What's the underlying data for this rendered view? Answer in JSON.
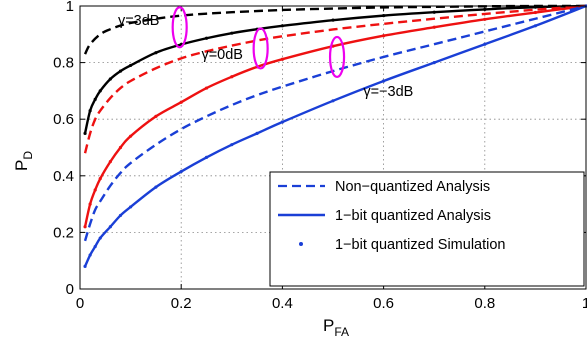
{
  "chart_data": {
    "type": "line",
    "xlabel_main": "P",
    "xlabel_sub": "FA",
    "ylabel_main": "P",
    "ylabel_sub": "D",
    "xlim": [
      0,
      1
    ],
    "ylim": [
      0,
      1
    ],
    "x_ticks": [
      0,
      0.2,
      0.4,
      0.6,
      0.8,
      1
    ],
    "y_ticks": [
      0,
      0.2,
      0.4,
      0.6,
      0.8,
      1
    ],
    "x_tick_labels": [
      "0",
      "0.2",
      "0.4",
      "0.6",
      "0.8",
      "1"
    ],
    "y_tick_labels": [
      "0",
      "0.2",
      "0.4",
      "0.6",
      "0.8",
      "1"
    ],
    "grid": true,
    "legend_position": "bottom-right",
    "legend": [
      {
        "label": "Non−quantized Analysis",
        "style": "dashed"
      },
      {
        "label": "1−bit quantized Analysis",
        "style": "solid"
      },
      {
        "label": "1−bit quantized Simulation",
        "style": "dot"
      }
    ],
    "colors": {
      "gamma_3dB": "#000000",
      "gamma_0dB": "#ee1111",
      "gamma_neg3dB": "#1a3fd6",
      "annotation": "#ee00ee"
    },
    "series": [
      {
        "color_key": "gamma_3dB",
        "non_quantized": {
          "x": [
            0.01,
            0.02,
            0.04,
            0.06,
            0.08,
            0.1,
            0.15,
            0.2,
            0.25,
            0.3,
            0.4,
            0.5,
            0.6,
            0.7,
            0.8,
            0.9,
            1.0
          ],
          "y": [
            0.83,
            0.865,
            0.9,
            0.918,
            0.931,
            0.94,
            0.955,
            0.966,
            0.973,
            0.978,
            0.986,
            0.991,
            0.995,
            0.997,
            0.999,
            1.0,
            1.0
          ]
        },
        "quantized": {
          "x": [
            0.01,
            0.02,
            0.03,
            0.04,
            0.06,
            0.08,
            0.1,
            0.15,
            0.2,
            0.25,
            0.3,
            0.35,
            0.4,
            0.5,
            0.6,
            0.7,
            0.8,
            0.9,
            1.0
          ],
          "y": [
            0.55,
            0.63,
            0.67,
            0.7,
            0.742,
            0.77,
            0.79,
            0.835,
            0.864,
            0.886,
            0.904,
            0.918,
            0.93,
            0.95,
            0.966,
            0.978,
            0.988,
            0.996,
            1.0
          ]
        }
      },
      {
        "color_key": "gamma_0dB",
        "non_quantized": {
          "x": [
            0.01,
            0.02,
            0.03,
            0.04,
            0.06,
            0.08,
            0.1,
            0.15,
            0.2,
            0.25,
            0.3,
            0.35,
            0.4,
            0.5,
            0.6,
            0.7,
            0.8,
            0.9,
            1.0
          ],
          "y": [
            0.48,
            0.55,
            0.6,
            0.63,
            0.675,
            0.71,
            0.735,
            0.78,
            0.815,
            0.84,
            0.86,
            0.878,
            0.893,
            0.917,
            0.937,
            0.955,
            0.972,
            0.987,
            1.0
          ]
        },
        "quantized": {
          "x": [
            0.01,
            0.02,
            0.03,
            0.04,
            0.06,
            0.08,
            0.1,
            0.15,
            0.2,
            0.25,
            0.3,
            0.35,
            0.4,
            0.5,
            0.6,
            0.7,
            0.8,
            0.9,
            1.0
          ],
          "y": [
            0.22,
            0.3,
            0.35,
            0.39,
            0.45,
            0.5,
            0.54,
            0.61,
            0.66,
            0.71,
            0.75,
            0.785,
            0.812,
            0.858,
            0.895,
            0.925,
            0.953,
            0.977,
            1.0
          ]
        }
      },
      {
        "color_key": "gamma_neg3dB",
        "non_quantized": {
          "x": [
            0.01,
            0.02,
            0.03,
            0.04,
            0.06,
            0.08,
            0.1,
            0.15,
            0.2,
            0.25,
            0.3,
            0.35,
            0.4,
            0.5,
            0.6,
            0.7,
            0.8,
            0.9,
            1.0
          ],
          "y": [
            0.17,
            0.23,
            0.28,
            0.31,
            0.365,
            0.41,
            0.445,
            0.51,
            0.565,
            0.61,
            0.65,
            0.685,
            0.715,
            0.77,
            0.82,
            0.865,
            0.91,
            0.955,
            1.0
          ]
        },
        "quantized": {
          "x": [
            0.01,
            0.02,
            0.03,
            0.04,
            0.06,
            0.08,
            0.1,
            0.15,
            0.2,
            0.25,
            0.3,
            0.35,
            0.4,
            0.5,
            0.6,
            0.7,
            0.8,
            0.9,
            1.0
          ],
          "y": [
            0.08,
            0.12,
            0.15,
            0.18,
            0.22,
            0.26,
            0.29,
            0.36,
            0.415,
            0.465,
            0.51,
            0.55,
            0.59,
            0.665,
            0.735,
            0.8,
            0.865,
            0.93,
            1.0
          ]
        }
      }
    ],
    "annotations": [
      {
        "text": "γ=3dB",
        "ellipse": [
          0.197,
          0.925
        ],
        "label_at": [
          0.075,
          0.95
        ]
      },
      {
        "text": "γ=0dB",
        "ellipse": [
          0.357,
          0.85
        ],
        "label_at": [
          0.24,
          0.83
        ]
      },
      {
        "text": "γ=−3dB",
        "ellipse": [
          0.508,
          0.82
        ],
        "label_at": [
          0.56,
          0.7
        ]
      }
    ]
  }
}
